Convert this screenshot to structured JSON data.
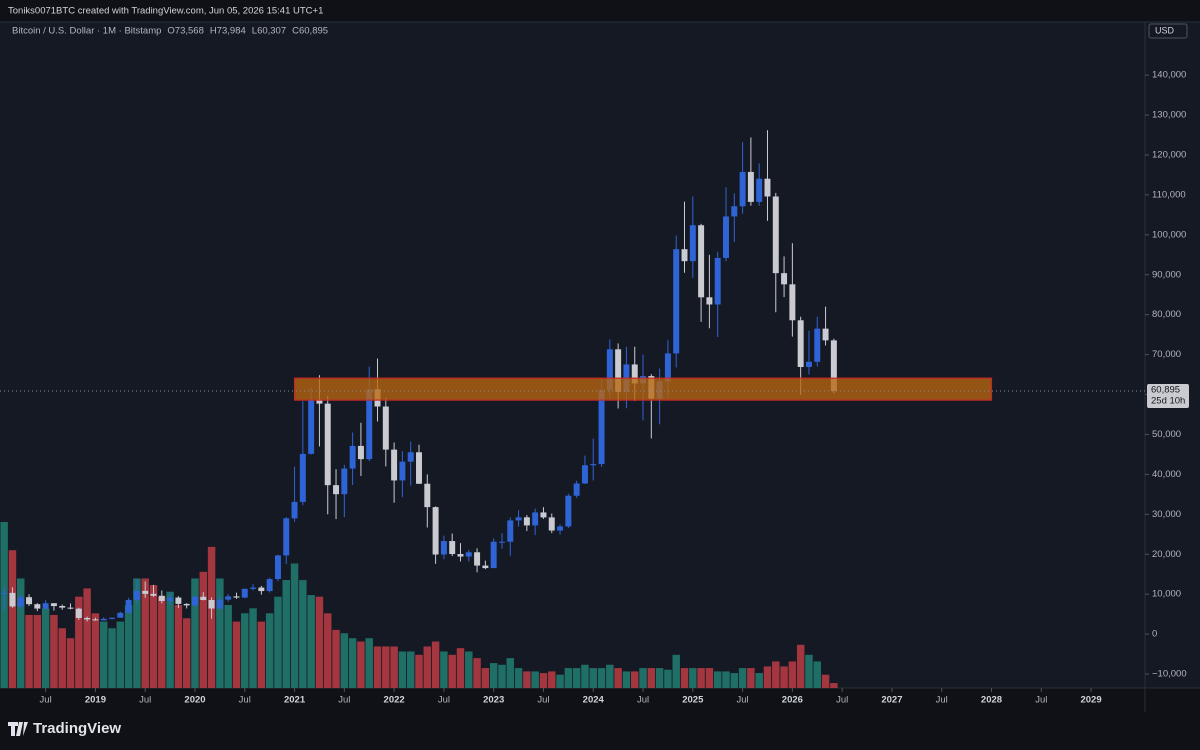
{
  "header": {
    "creator": "Toniks0071BTC created with TradingView.com, Jun 05, 2026 15:41 UTC+1",
    "logo": "TradingView"
  },
  "chart_data": {
    "type": "candlestick",
    "title": "Bitcoin / U.S. Dollar · 1M · Bitstamp",
    "ohlc_legend": [
      {
        "value": 73568,
        "label": "O73,568"
      },
      {
        "value": 73984,
        "label": "H73,984"
      },
      {
        "value": 60307,
        "label": "L60,307"
      },
      {
        "value": 60895,
        "label": "C60,895"
      }
    ],
    "currency": "USD",
    "last_price": {
      "value": 60895,
      "label": "60,895"
    },
    "countdown": "25d 10h",
    "up_color": "#2f64d6",
    "down_color": "#c9cbd1",
    "volume_up_color": "#1f6f66",
    "volume_down_color": "#a3363e",
    "zone": {
      "start": "2021-01",
      "end": "2028-01",
      "low": 58600,
      "high": 64100,
      "fill": "#b8650f",
      "stroke": "#c62828"
    },
    "xlim": [
      "2018-02",
      "2029-07"
    ],
    "ylim": [
      -13500,
      153300
    ],
    "volume_lim": [
      0,
      100
    ],
    "yticks": [
      {
        "value": -10000,
        "label": "−10,000"
      },
      0,
      {
        "value": 10000,
        "label": "10,000"
      },
      {
        "value": 20000,
        "label": "20,000"
      },
      {
        "value": 30000,
        "label": "30,000"
      },
      {
        "value": 40000,
        "label": "40,000"
      },
      {
        "value": 50000,
        "label": "50,000"
      },
      {
        "value": 60000,
        "label": "60,000"
      },
      {
        "value": 70000,
        "label": "70,000"
      },
      {
        "value": 80000,
        "label": "80,000"
      },
      {
        "value": 90000,
        "label": "90,000"
      },
      {
        "value": 100000,
        "label": "100,000"
      },
      {
        "value": 110000,
        "label": "110,000"
      },
      {
        "value": 120000,
        "label": "120,000"
      },
      {
        "value": 130000,
        "label": "130,000"
      },
      {
        "value": 140000,
        "label": "140,000"
      }
    ],
    "xticks": [
      {
        "value": "2018-07",
        "label": "Jul"
      },
      {
        "value": "2019-01",
        "label": "2019"
      },
      {
        "value": "2019-07",
        "label": "Jul"
      },
      {
        "value": "2020-01",
        "label": "2020"
      },
      {
        "value": "2020-07",
        "label": "Jul"
      },
      {
        "value": "2021-01",
        "label": "2021"
      },
      {
        "value": "2021-07",
        "label": "Jul"
      },
      {
        "value": "2022-01",
        "label": "2022"
      },
      {
        "value": "2022-07",
        "label": "Jul"
      },
      {
        "value": "2023-01",
        "label": "2023"
      },
      {
        "value": "2023-07",
        "label": "Jul"
      },
      {
        "value": "2024-01",
        "label": "2024"
      },
      {
        "value": "2024-07",
        "label": "Jul"
      },
      {
        "value": "2025-01",
        "label": "2025"
      },
      {
        "value": "2025-07",
        "label": "Jul"
      },
      {
        "value": "2026-01",
        "label": "2026"
      },
      {
        "value": "2026-07",
        "label": "Jul"
      },
      {
        "value": "2027-01",
        "label": "2027"
      },
      {
        "value": "2027-07",
        "label": "Jul"
      },
      {
        "value": "2028-01",
        "label": "2028"
      },
      {
        "value": "2028-07",
        "label": "Jul"
      },
      {
        "value": "2029-01",
        "label": "2029"
      }
    ],
    "candles": {
      "x": [
        "2018-02",
        "2018-03",
        "2018-04",
        "2018-05",
        "2018-06",
        "2018-07",
        "2018-08",
        "2018-09",
        "2018-10",
        "2018-11",
        "2018-12",
        "2019-01",
        "2019-02",
        "2019-03",
        "2019-04",
        "2019-05",
        "2019-06",
        "2019-07",
        "2019-08",
        "2019-09",
        "2019-10",
        "2019-11",
        "2019-12",
        "2020-01",
        "2020-02",
        "2020-03",
        "2020-04",
        "2020-05",
        "2020-06",
        "2020-07",
        "2020-08",
        "2020-09",
        "2020-10",
        "2020-11",
        "2020-12",
        "2021-01",
        "2021-02",
        "2021-03",
        "2021-04",
        "2021-05",
        "2021-06",
        "2021-07",
        "2021-08",
        "2021-09",
        "2021-10",
        "2021-11",
        "2021-12",
        "2022-01",
        "2022-02",
        "2022-03",
        "2022-04",
        "2022-05",
        "2022-06",
        "2022-07",
        "2022-08",
        "2022-09",
        "2022-10",
        "2022-11",
        "2022-12",
        "2023-01",
        "2023-02",
        "2023-03",
        "2023-04",
        "2023-05",
        "2023-06",
        "2023-07",
        "2023-08",
        "2023-09",
        "2023-10",
        "2023-11",
        "2023-12",
        "2024-01",
        "2024-02",
        "2024-03",
        "2024-04",
        "2024-05",
        "2024-06",
        "2024-07",
        "2024-08",
        "2024-09",
        "2024-10",
        "2024-11",
        "2024-12",
        "2025-01",
        "2025-02",
        "2025-03",
        "2025-04",
        "2025-05",
        "2025-06",
        "2025-07",
        "2025-08",
        "2025-09",
        "2025-10",
        "2025-11",
        "2025-12",
        "2026-01",
        "2026-02",
        "2026-03",
        "2026-04",
        "2026-05",
        "2026-06"
      ],
      "open": [
        10266,
        10326,
        6926,
        9246,
        7494,
        6391,
        7730,
        7030,
        6626,
        6370,
        4040,
        3690,
        3440,
        3820,
        4100,
        5320,
        8560,
        10820,
        10080,
        9600,
        8300,
        9150,
        7560,
        7190,
        9350,
        8540,
        6410,
        8630,
        9450,
        9140,
        11330,
        11650,
        10780,
        13790,
        19700,
        28990,
        33110,
        45140,
        58790,
        57720,
        37300,
        35040,
        41460,
        47130,
        43820,
        61350,
        57000,
        46200,
        38480,
        43190,
        45540,
        37650,
        31800,
        19930,
        23300,
        20050,
        19420,
        20490,
        17160,
        16540,
        23130,
        23140,
        28470,
        29250,
        27220,
        30470,
        29230,
        25940,
        26960,
        34650,
        37720,
        42280,
        42580,
        61130,
        71330,
        60660,
        67530,
        62770,
        64620,
        58970,
        63330,
        70290,
        96400,
        93400,
        102400,
        84350,
        82550,
        94200,
        104600,
        107150,
        115750,
        108250,
        114050,
        109600,
        90400,
        87600,
        78600,
        66900,
        68200,
        76500,
        73568
      ],
      "high": [
        11789,
        11700,
        9760,
        9990,
        7760,
        8490,
        7760,
        7410,
        7680,
        6590,
        4390,
        4110,
        4200,
        4140,
        5640,
        9090,
        13880,
        13200,
        12330,
        10920,
        10370,
        9510,
        7750,
        9580,
        10500,
        9190,
        9470,
        10070,
        10380,
        11440,
        12470,
        12070,
        14100,
        19880,
        29300,
        41950,
        58350,
        61790,
        64850,
        59600,
        41300,
        42400,
        50500,
        52950,
        67000,
        69000,
        59100,
        47990,
        45800,
        48200,
        47440,
        40000,
        31990,
        24670,
        25200,
        22800,
        21090,
        21480,
        18400,
        23950,
        25250,
        29200,
        31000,
        29820,
        31430,
        31800,
        30200,
        27500,
        35200,
        38400,
        44700,
        48970,
        63900,
        73800,
        72800,
        71950,
        71970,
        70000,
        65100,
        66500,
        73620,
        99800,
        108300,
        109600,
        102750,
        95000,
        95750,
        111900,
        110400,
        123200,
        124400,
        117900,
        126200,
        110500,
        94600,
        97900,
        79500,
        76000,
        79500,
        82000,
        73984
      ],
      "low": [
        5968,
        6600,
        6430,
        7030,
        5755,
        6070,
        5880,
        6100,
        6200,
        3560,
        3150,
        3350,
        3390,
        3670,
        4070,
        5320,
        7450,
        9070,
        9320,
        7710,
        7300,
        6530,
        6430,
        6870,
        8450,
        3850,
        6150,
        8120,
        8830,
        8980,
        10930,
        9880,
        10420,
        13220,
        17580,
        28130,
        32300,
        44950,
        47000,
        30000,
        28800,
        29300,
        37330,
        39600,
        43300,
        53250,
        42000,
        32900,
        34300,
        37200,
        37600,
        26700,
        17600,
        18780,
        19540,
        18200,
        18200,
        15480,
        16250,
        16500,
        21400,
        19600,
        26940,
        25810,
        24800,
        28860,
        25300,
        24900,
        26550,
        34100,
        37600,
        38500,
        41880,
        59000,
        56500,
        56560,
        58400,
        53500,
        49000,
        52550,
        58900,
        66800,
        90500,
        89200,
        78200,
        76600,
        74400,
        93400,
        98200,
        105300,
        107300,
        107300,
        103500,
        80600,
        84400,
        74500,
        59900,
        65000,
        67000,
        72300,
        60307
      ],
      "close": [
        10326,
        6926,
        9246,
        7494,
        6391,
        7730,
        7030,
        6626,
        6370,
        4040,
        3690,
        3440,
        3820,
        4100,
        5320,
        8560,
        10820,
        10080,
        9600,
        8300,
        9150,
        7560,
        7190,
        9350,
        8540,
        6410,
        8630,
        9450,
        9140,
        11330,
        11650,
        10780,
        13790,
        19700,
        28990,
        33110,
        45140,
        58790,
        57720,
        37300,
        35040,
        41460,
        47130,
        43820,
        61350,
        57000,
        46200,
        38480,
        43190,
        45540,
        37650,
        31800,
        19930,
        23300,
        20050,
        19420,
        20490,
        17160,
        16540,
        23130,
        23140,
        28470,
        29250,
        27220,
        30470,
        29230,
        25940,
        26960,
        34650,
        37720,
        42280,
        42580,
        61130,
        71330,
        60660,
        67530,
        62770,
        64620,
        58970,
        63330,
        70290,
        96400,
        93400,
        102400,
        84350,
        82550,
        94200,
        104600,
        107150,
        115750,
        108250,
        114050,
        109600,
        90400,
        87600,
        78600,
        66900,
        68200,
        76500,
        73568,
        60895
      ],
      "volume": [
        100,
        83,
        66,
        44,
        44,
        48,
        44,
        36,
        30,
        55,
        60,
        45,
        40,
        36,
        40,
        50,
        66,
        66,
        62,
        55,
        58,
        50,
        42,
        66,
        70,
        85,
        66,
        50,
        40,
        45,
        48,
        40,
        45,
        55,
        65,
        75,
        65,
        56,
        55,
        45,
        35,
        33,
        30,
        28,
        30,
        25,
        25,
        25,
        22,
        22,
        20,
        25,
        28,
        22,
        20,
        24,
        22,
        18,
        12,
        15,
        14,
        18,
        12,
        10,
        10,
        9,
        10,
        8,
        12,
        12,
        14,
        12,
        12,
        14,
        12,
        10,
        10,
        12,
        12,
        12,
        11,
        20,
        12,
        12,
        12,
        12,
        10,
        10,
        9,
        12,
        12,
        9,
        13,
        16,
        13,
        16,
        26,
        20,
        16,
        8,
        3
      ]
    }
  }
}
